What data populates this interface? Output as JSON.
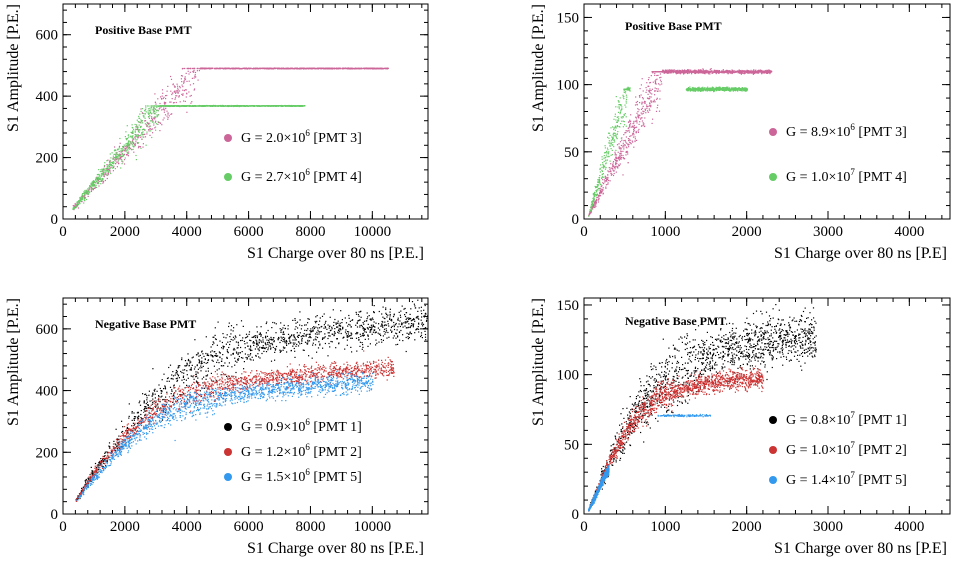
{
  "chart_data": [
    {
      "id": "tl",
      "type": "scatter",
      "title": "Positive Base PMT",
      "xlabel": "S1 Charge over 80 ns [P.E.]",
      "ylabel": "S1 Amplitude [P.E.]",
      "xlim": [
        0,
        11800
      ],
      "ylim": [
        0,
        700
      ],
      "xticks": [
        0,
        2000,
        4000,
        6000,
        8000,
        10000
      ],
      "yticks": [
        0,
        200,
        400,
        600
      ],
      "grid": false,
      "legend_position": "right-middle",
      "series": [
        {
          "name": "G = 2.0×10⁶ [PMT 3]",
          "label_pre": "G = 2.0×10",
          "label_sup": "6",
          "label_post": " [PMT 3]",
          "color": "#cc6699",
          "shape": "saturating",
          "x_start": 300,
          "y_start": 35,
          "x_knee": 4400,
          "y_sat": 492,
          "x_end": 10500,
          "spread": 0.09
        },
        {
          "name": "G = 2.7×10⁶ [PMT 4]",
          "label_pre": "G = 2.7×10",
          "label_sup": "6",
          "label_post": " [PMT 4]",
          "color": "#66cc66",
          "shape": "saturating",
          "x_start": 300,
          "y_start": 35,
          "x_knee": 3100,
          "y_sat": 370,
          "x_end": 7800,
          "spread": 0.09
        }
      ]
    },
    {
      "id": "tr",
      "type": "scatter",
      "title": "Positive Base PMT",
      "xlabel": "S1 Charge over 80 ns [P.E]",
      "ylabel": "S1 Amplitude [P.E.]",
      "xlim": [
        0,
        4500
      ],
      "ylim": [
        0,
        160
      ],
      "xticks": [
        0,
        1000,
        2000,
        3000,
        4000
      ],
      "yticks": [
        0,
        50,
        100,
        150
      ],
      "grid": false,
      "legend_position": "right-middle",
      "series": [
        {
          "name": "G = 8.9×10⁶ [PMT 3]",
          "label_pre": "G = 8.9×10",
          "label_sup": "6",
          "label_post": " [PMT 3]",
          "color": "#cc6699",
          "shape": "saturating",
          "x_start": 50,
          "y_start": 3,
          "x_knee": 950,
          "y_sat": 110,
          "x_end": 2300,
          "spread": 0.12
        },
        {
          "name": "G = 1.0×10⁷ [PMT 4]",
          "label_pre": "G = 1.0×10",
          "label_sup": "7",
          "label_post": " [PMT 4]",
          "color": "#66cc66",
          "shape": "saturating",
          "x_start": 50,
          "y_start": 3,
          "x_knee": 520,
          "y_sat": 97,
          "x_end": 2000,
          "spread": 0.12,
          "gap": [
            560,
            1250
          ]
        }
      ]
    },
    {
      "id": "bl",
      "type": "scatter",
      "title": "Negative Base PMT",
      "xlabel": "S1 Charge over 80 ns [P.E.]",
      "ylabel": "S1 Amplitude [P.E.]",
      "xlim": [
        0,
        11800
      ],
      "ylim": [
        0,
        700
      ],
      "xticks": [
        0,
        2000,
        4000,
        6000,
        8000,
        10000
      ],
      "yticks": [
        0,
        200,
        400,
        600
      ],
      "grid": false,
      "legend_position": "right-middle",
      "series": [
        {
          "name": "G = 0.9×10⁶ [PMT 1]",
          "label_pre": "G = 0.9×10",
          "label_sup": "6",
          "label_post": " [PMT 1]",
          "color": "#000000",
          "shape": "curve",
          "x_start": 400,
          "y_start": 45,
          "curve": [
            [
              400,
              45
            ],
            [
              1000,
              140
            ],
            [
              2000,
              270
            ],
            [
              3000,
              380
            ],
            [
              4000,
              460
            ],
            [
              5000,
              510
            ],
            [
              6000,
              545
            ],
            [
              7000,
              568
            ],
            [
              8000,
              585
            ],
            [
              9000,
              597
            ],
            [
              10000,
              607
            ],
            [
              11000,
              614
            ],
            [
              11800,
              620
            ]
          ],
          "x_end": 11800,
          "spread": 0.08
        },
        {
          "name": "G = 1.2×10⁶ [PMT 2]",
          "label_pre": "G = 1.2×10",
          "label_sup": "6",
          "label_post": " [PMT 2]",
          "color": "#cc3333",
          "shape": "curve",
          "x_start": 400,
          "y_start": 45,
          "curve": [
            [
              400,
              45
            ],
            [
              1000,
              135
            ],
            [
              2000,
              255
            ],
            [
              3000,
              340
            ],
            [
              4000,
              390
            ],
            [
              5000,
              415
            ],
            [
              6000,
              432
            ],
            [
              7000,
              446
            ],
            [
              8000,
              456
            ],
            [
              9000,
              465
            ],
            [
              10000,
              472
            ],
            [
              10700,
              478
            ]
          ],
          "x_end": 10700,
          "spread": 0.05
        },
        {
          "name": "G = 1.5×10⁶ [PMT 5]",
          "label_pre": "G = 1.5×10",
          "label_sup": "6",
          "label_post": " [PMT 5]",
          "color": "#3399ee",
          "shape": "curve",
          "x_start": 400,
          "y_start": 42,
          "curve": [
            [
              400,
              42
            ],
            [
              1000,
              120
            ],
            [
              2000,
              230
            ],
            [
              3000,
              310
            ],
            [
              4000,
              355
            ],
            [
              5000,
              380
            ],
            [
              6000,
              397
            ],
            [
              7000,
              408
            ],
            [
              8000,
              416
            ],
            [
              9000,
              422
            ],
            [
              10000,
              428
            ]
          ],
          "x_end": 10000,
          "spread": 0.06
        }
      ]
    },
    {
      "id": "br",
      "type": "scatter",
      "title": "Negative Base PMT",
      "xlabel": "S1 Charge over 80 ns [P.E]",
      "ylabel": "S1 Amplitude [P.E.]",
      "xlim": [
        0,
        4500
      ],
      "ylim": [
        0,
        155
      ],
      "xticks": [
        0,
        1000,
        2000,
        3000,
        4000
      ],
      "yticks": [
        0,
        50,
        100,
        150
      ],
      "grid": false,
      "legend_position": "right-middle",
      "series": [
        {
          "name": "G = 0.8×10⁷ [PMT 1]",
          "label_pre": "G = 0.8×10",
          "label_sup": "7",
          "label_post": " [PMT 1]",
          "color": "#000000",
          "shape": "curve",
          "x_start": 50,
          "y_start": 3,
          "curve": [
            [
              50,
              3
            ],
            [
              300,
              38
            ],
            [
              600,
              70
            ],
            [
              900,
              92
            ],
            [
              1200,
              105
            ],
            [
              1500,
              113
            ],
            [
              1800,
              119
            ],
            [
              2100,
              123
            ],
            [
              2400,
              126
            ],
            [
              2700,
              127
            ],
            [
              2850,
              127
            ]
          ],
          "x_end": 2850,
          "spread": 0.12
        },
        {
          "name": "G = 1.0×10⁷ [PMT 2]",
          "label_pre": "G = 1.0×10",
          "label_sup": "7",
          "label_post": " [PMT 2]",
          "color": "#cc3333",
          "shape": "curve",
          "x_start": 50,
          "y_start": 3,
          "curve": [
            [
              50,
              3
            ],
            [
              300,
              38
            ],
            [
              600,
              68
            ],
            [
              900,
              83
            ],
            [
              1200,
              90
            ],
            [
              1500,
              94
            ],
            [
              1800,
              96
            ],
            [
              2100,
              97
            ],
            [
              2200,
              97
            ]
          ],
          "x_end": 2200,
          "spread": 0.06
        },
        {
          "name": "G = 1.4×10⁷ [PMT 5]",
          "label_pre": "G = 1.4×10",
          "label_sup": "7",
          "label_post": " [PMT 5]",
          "color": "#3399ee",
          "shape": "curve",
          "x_start": 50,
          "y_start": 3,
          "curve": [
            [
              50,
              3
            ],
            [
              150,
              15
            ],
            [
              250,
              28
            ],
            [
              300,
              32
            ]
          ],
          "x_end": 300,
          "spread": 0.08,
          "tail": [
            [
              900,
              71
            ],
            [
              1550,
              71
            ]
          ]
        }
      ]
    }
  ]
}
